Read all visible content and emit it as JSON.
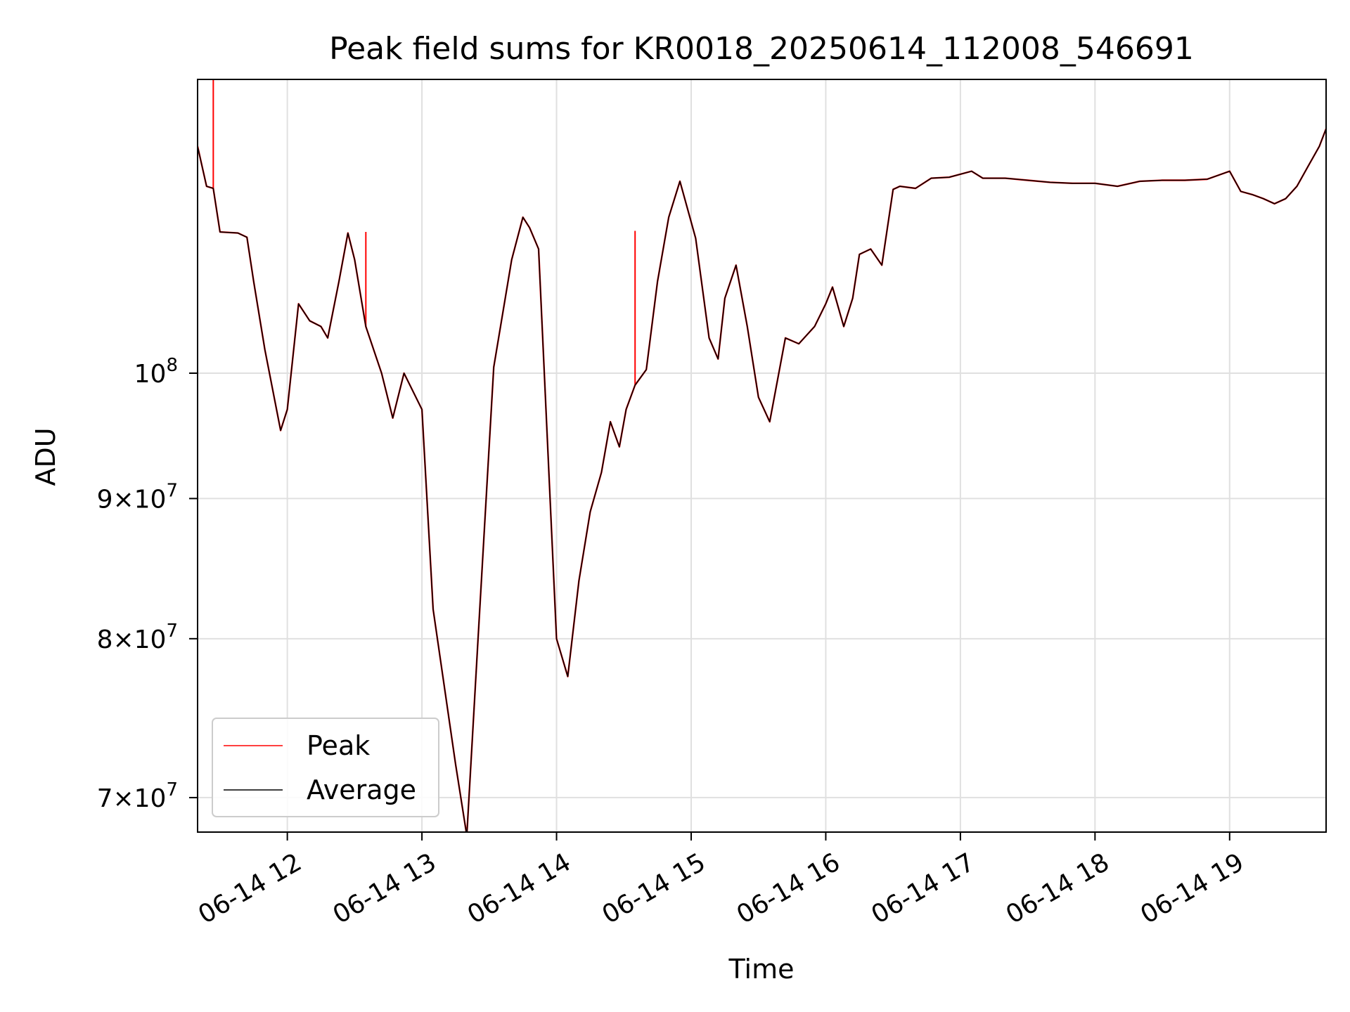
{
  "chart_data": {
    "type": "line",
    "title": "Peak field sums for KR0018_20250614_112008_546691",
    "xlabel": "Time",
    "ylabel": "ADU",
    "yscale": "log",
    "grid": true,
    "legend_position": "lower-left",
    "xlim": [
      "2025-06-14 11:20",
      "2025-06-14 19:43"
    ],
    "ylim": [
      68000000,
      128000000
    ],
    "x_ticks": [
      {
        "value": "2025-06-14 12:00",
        "label": "06-14 12"
      },
      {
        "value": "2025-06-14 13:00",
        "label": "06-14 13"
      },
      {
        "value": "2025-06-14 14:00",
        "label": "06-14 14"
      },
      {
        "value": "2025-06-14 15:00",
        "label": "06-14 15"
      },
      {
        "value": "2025-06-14 16:00",
        "label": "06-14 16"
      },
      {
        "value": "2025-06-14 17:00",
        "label": "06-14 17"
      },
      {
        "value": "2025-06-14 18:00",
        "label": "06-14 18"
      },
      {
        "value": "2025-06-14 19:00",
        "label": "06-14 19"
      }
    ],
    "y_ticks": [
      {
        "value": 70000000,
        "mantissa": "7",
        "base": "10",
        "exponent": "7"
      },
      {
        "value": 80000000,
        "mantissa": "8",
        "base": "10",
        "exponent": "7"
      },
      {
        "value": 90000000,
        "mantissa": "9",
        "base": "10",
        "exponent": "7"
      },
      {
        "value": 100000000,
        "mantissa": "",
        "base": "10",
        "exponent": "8"
      }
    ],
    "x": [
      "2025-06-14 11:20",
      "2025-06-14 11:24",
      "2025-06-14 11:27",
      "2025-06-14 11:30",
      "2025-06-14 11:38",
      "2025-06-14 11:42",
      "2025-06-14 11:45",
      "2025-06-14 11:50",
      "2025-06-14 11:57",
      "2025-06-14 12:00",
      "2025-06-14 12:05",
      "2025-06-14 12:10",
      "2025-06-14 12:15",
      "2025-06-14 12:18",
      "2025-06-14 12:23",
      "2025-06-14 12:27",
      "2025-06-14 12:30",
      "2025-06-14 12:35",
      "2025-06-14 12:42",
      "2025-06-14 12:47",
      "2025-06-14 12:52",
      "2025-06-14 13:00",
      "2025-06-14 13:05",
      "2025-06-14 13:15",
      "2025-06-14 13:20",
      "2025-06-14 13:25",
      "2025-06-14 13:32",
      "2025-06-14 13:40",
      "2025-06-14 13:45",
      "2025-06-14 13:48",
      "2025-06-14 13:52",
      "2025-06-14 14:00",
      "2025-06-14 14:05",
      "2025-06-14 14:10",
      "2025-06-14 14:15",
      "2025-06-14 14:20",
      "2025-06-14 14:24",
      "2025-06-14 14:28",
      "2025-06-14 14:31",
      "2025-06-14 14:35",
      "2025-06-14 14:40",
      "2025-06-14 14:45",
      "2025-06-14 14:50",
      "2025-06-14 14:55",
      "2025-06-14 15:02",
      "2025-06-14 15:08",
      "2025-06-14 15:12",
      "2025-06-14 15:15",
      "2025-06-14 15:20",
      "2025-06-14 15:25",
      "2025-06-14 15:30",
      "2025-06-14 15:35",
      "2025-06-14 15:42",
      "2025-06-14 15:48",
      "2025-06-14 15:55",
      "2025-06-14 16:00",
      "2025-06-14 16:03",
      "2025-06-14 16:08",
      "2025-06-14 16:12",
      "2025-06-14 16:15",
      "2025-06-14 16:20",
      "2025-06-14 16:25",
      "2025-06-14 16:30",
      "2025-06-14 16:33",
      "2025-06-14 16:40",
      "2025-06-14 16:47",
      "2025-06-14 16:55",
      "2025-06-14 17:05",
      "2025-06-14 17:10",
      "2025-06-14 17:20",
      "2025-06-14 17:30",
      "2025-06-14 17:40",
      "2025-06-14 17:50",
      "2025-06-14 18:00",
      "2025-06-14 18:10",
      "2025-06-14 18:20",
      "2025-06-14 18:30",
      "2025-06-14 18:40",
      "2025-06-14 18:50",
      "2025-06-14 19:00",
      "2025-06-14 19:05",
      "2025-06-14 19:10",
      "2025-06-14 19:15",
      "2025-06-14 19:20",
      "2025-06-14 19:25",
      "2025-06-14 19:30",
      "2025-06-14 19:35",
      "2025-06-14 19:40",
      "2025-06-14 19:43"
    ],
    "series": [
      {
        "name": "Peak",
        "color": "#ff0000",
        "values": [
          121000000,
          117000000,
          116800000,
          112600000,
          112500000,
          112100000,
          108000000,
          102000000,
          95300000,
          97000000,
          106000000,
          104500000,
          104000000,
          103000000,
          108000000,
          112500000,
          110000000,
          104000000,
          100000000,
          96300000,
          100000000,
          97000000,
          82000000,
          72000000,
          67800000,
          80000000,
          100500000,
          110000000,
          114000000,
          113000000,
          111000000,
          80000000,
          77500000,
          84000000,
          89000000,
          92000000,
          96000000,
          94000000,
          97000000,
          99000000,
          100300000,
          108000000,
          114000000,
          117500000,
          112000000,
          103000000,
          101200000,
          106500000,
          109500000,
          104000000,
          98000000,
          96000000,
          103000000,
          102500000,
          104000000,
          106000000,
          107500000,
          104000000,
          106500000,
          110500000,
          111000000,
          109500000,
          116700000,
          117000000,
          116800000,
          117800000,
          117900000,
          118500000,
          117800000,
          117800000,
          117600000,
          117400000,
          117300000,
          117300000,
          117000000,
          117500000,
          117600000,
          117600000,
          117700000,
          118500000,
          116500000,
          116200000,
          115800000,
          115300000,
          115800000,
          117000000,
          119000000,
          121000000,
          122800000
        ],
        "spikes": [
          {
            "x": "2025-06-14 11:27",
            "value": 128000000
          },
          {
            "x": "2025-06-14 12:35",
            "value": 112600000
          },
          {
            "x": "2025-06-14 14:35",
            "value": 112700000
          }
        ]
      },
      {
        "name": "Average",
        "color": "#000000",
        "values": [
          121000000,
          117000000,
          116800000,
          112600000,
          112500000,
          112100000,
          108000000,
          102000000,
          95300000,
          97000000,
          106000000,
          104500000,
          104000000,
          103000000,
          108000000,
          112500000,
          110000000,
          104000000,
          100000000,
          96300000,
          100000000,
          97000000,
          82000000,
          72000000,
          67800000,
          80000000,
          100500000,
          110000000,
          114000000,
          113000000,
          111000000,
          80000000,
          77500000,
          84000000,
          89000000,
          92000000,
          96000000,
          94000000,
          97000000,
          99000000,
          100300000,
          108000000,
          114000000,
          117500000,
          112000000,
          103000000,
          101200000,
          106500000,
          109500000,
          104000000,
          98000000,
          96000000,
          103000000,
          102500000,
          104000000,
          106000000,
          107500000,
          104000000,
          106500000,
          110500000,
          111000000,
          109500000,
          116700000,
          117000000,
          116800000,
          117800000,
          117900000,
          118500000,
          117800000,
          117800000,
          117600000,
          117400000,
          117300000,
          117300000,
          117000000,
          117500000,
          117600000,
          117600000,
          117700000,
          118500000,
          116500000,
          116200000,
          115800000,
          115300000,
          115800000,
          117000000,
          119000000,
          121000000,
          122800000
        ]
      }
    ]
  }
}
